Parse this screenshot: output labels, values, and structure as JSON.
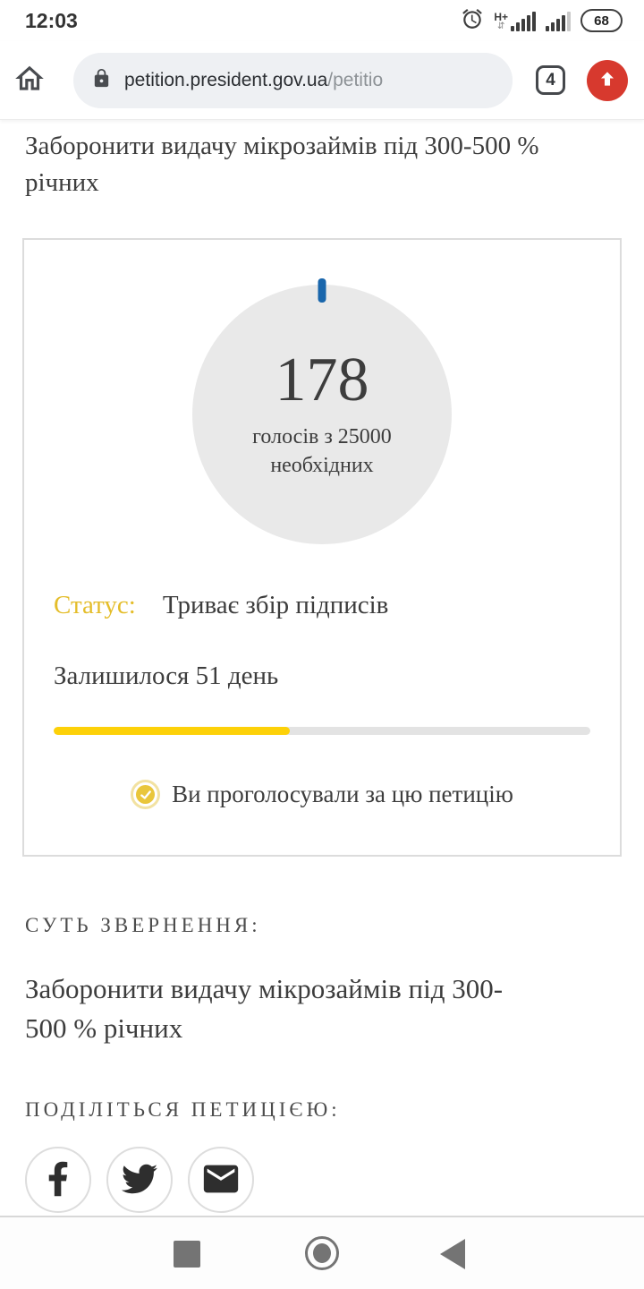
{
  "status_bar": {
    "time": "12:03",
    "network_type": "H+",
    "battery_percent": "68"
  },
  "browser": {
    "url_host": "petition.president.gov.ua",
    "url_path": "/petitio",
    "tab_count": "4"
  },
  "page": {
    "title": "Заборонити видачу мікрозаймів під 300-500 %\nрічних",
    "vote_card": {
      "votes": "178",
      "caption_line1": "голосів з 25000",
      "caption_line2": "необхідних",
      "status_label": "Статус:",
      "status_value": "Триває збір підписів",
      "days_left": "Залишилося 51 день",
      "progress_percent": 44,
      "voted_message": "Ви проголосували за цю петицію"
    },
    "essence": {
      "heading": "СУТЬ ЗВЕРНЕННЯ:",
      "text": "Заборонити видачу мікрозаймів під 300-\n500 % річних"
    },
    "share": {
      "heading": "ПОДІЛІТЬСЯ ПЕТИЦІЄЮ:",
      "buttons": [
        "facebook",
        "twitter",
        "email"
      ]
    }
  },
  "icons": {
    "data_arrows": "⇵",
    "alarm": "alarm-clock",
    "lock": "https-padlock",
    "browser_home": "home-outline",
    "update": "chrome-update-up-arrow",
    "voted_check": "check-circle",
    "share": [
      "facebook-f",
      "twitter-bird",
      "email-envelope"
    ],
    "android_nav": [
      "recents-square",
      "home-circle",
      "back-triangle"
    ]
  },
  "colors": {
    "accent_yellow": "#e4bd2a",
    "progress_yellow": "#fdd108",
    "progress_track": "#e3e3e3",
    "circle_gray": "#e9e9e9",
    "tick_blue": "#1966ac",
    "update_red": "#d7392e",
    "text_dark": "#3d3d3d",
    "nav_icon_gray": "#747474"
  }
}
